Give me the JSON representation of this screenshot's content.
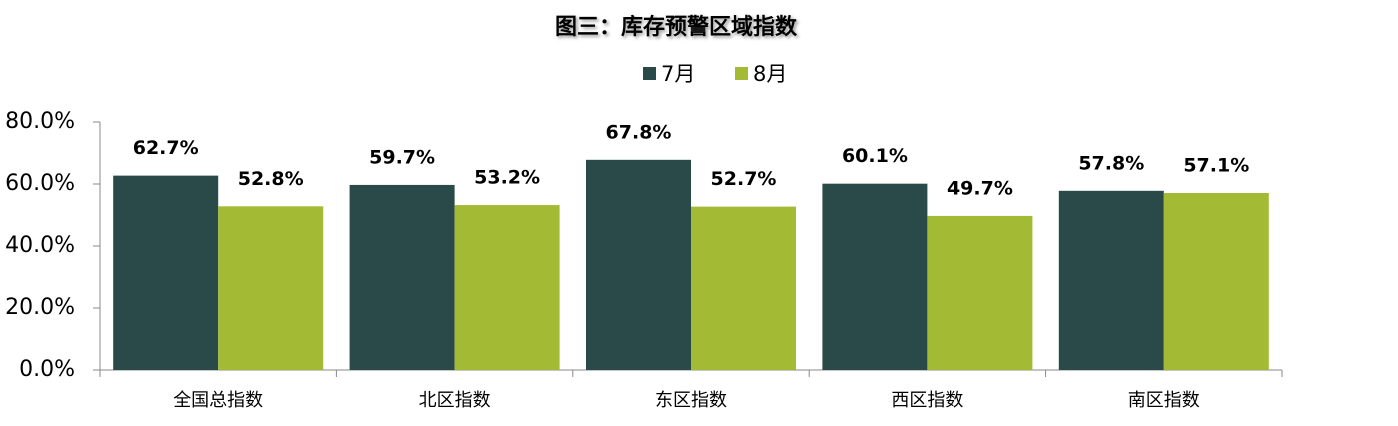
{
  "chart_data": {
    "type": "bar",
    "title": "图三：库存预警区域指数",
    "categories": [
      "全国总指数",
      "北区指数",
      "东区指数",
      "西区指数",
      "南区指数"
    ],
    "series": [
      {
        "name": "7月",
        "color": "#2a4949",
        "values": [
          62.7,
          59.7,
          67.8,
          60.1,
          57.8
        ],
        "value_labels": [
          "62.7%",
          "59.7%",
          "67.8%",
          "60.1%",
          "57.8%"
        ]
      },
      {
        "name": "8月",
        "color": "#a3ba35",
        "values": [
          52.8,
          53.2,
          52.7,
          49.7,
          57.1
        ],
        "value_labels": [
          "52.8%",
          "53.2%",
          "52.7%",
          "49.7%",
          "57.1%"
        ]
      }
    ],
    "ylim": [
      0,
      80
    ],
    "yticks": [
      {
        "value": 0,
        "label": "0.0%"
      },
      {
        "value": 20,
        "label": "20.0%"
      },
      {
        "value": 40,
        "label": "40.0%"
      },
      {
        "value": 60,
        "label": "60.0%"
      },
      {
        "value": 80,
        "label": "80.0%"
      }
    ],
    "legend": "top"
  }
}
